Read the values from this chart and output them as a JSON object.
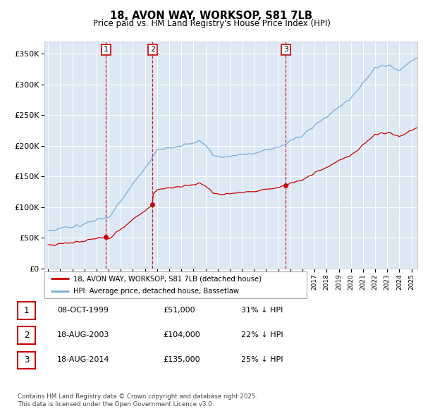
{
  "title_line1": "18, AVON WAY, WORKSOP, S81 7LB",
  "title_line2": "Price paid vs. HM Land Registry's House Price Index (HPI)",
  "background_color": "#ffffff",
  "plot_bg_color": "#dde8f5",
  "grid_color": "#ffffff",
  "hpi_color": "#7aadd4",
  "price_color": "#cc0000",
  "vline_color": "#cc0000",
  "transactions": [
    {
      "date_year": 1999.78,
      "price": 51000,
      "label": "1"
    },
    {
      "date_year": 2003.63,
      "price": 104000,
      "label": "2"
    },
    {
      "date_year": 2014.63,
      "price": 135000,
      "label": "3"
    }
  ],
  "table_rows": [
    {
      "num": "1",
      "date": "08-OCT-1999",
      "price": "£51,000",
      "pct": "31% ↓ HPI"
    },
    {
      "num": "2",
      "date": "18-AUG-2003",
      "price": "£104,000",
      "pct": "22% ↓ HPI"
    },
    {
      "num": "3",
      "date": "18-AUG-2014",
      "price": "£135,000",
      "pct": "25% ↓ HPI"
    }
  ],
  "legend_entries": [
    "18, AVON WAY, WORKSOP, S81 7LB (detached house)",
    "HPI: Average price, detached house, Bassetlaw"
  ],
  "footer": "Contains HM Land Registry data © Crown copyright and database right 2025.\nThis data is licensed under the Open Government Licence v3.0.",
  "ylim": [
    0,
    370000
  ],
  "yticks": [
    0,
    50000,
    100000,
    150000,
    200000,
    250000,
    300000,
    350000
  ],
  "xlim_start": 1994.7,
  "xlim_end": 2025.5
}
